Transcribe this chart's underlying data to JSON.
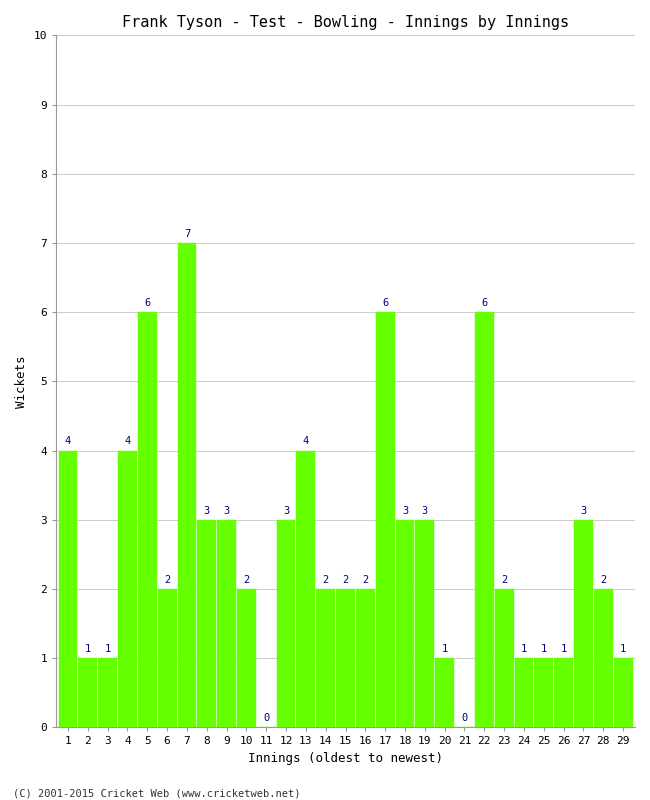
{
  "title": "Frank Tyson - Test - Bowling - Innings by Innings",
  "xlabel": "Innings (oldest to newest)",
  "ylabel": "Wickets",
  "bar_color": "#66ff00",
  "bar_edge_color": "#66ff00",
  "label_color": "#000080",
  "background_color": "#ffffff",
  "grid_color": "#cccccc",
  "ylim": [
    0,
    10
  ],
  "yticks": [
    0,
    1,
    2,
    3,
    4,
    5,
    6,
    7,
    8,
    9,
    10
  ],
  "innings": [
    1,
    2,
    3,
    4,
    5,
    6,
    7,
    8,
    9,
    10,
    11,
    12,
    13,
    14,
    15,
    16,
    17,
    18,
    19,
    20,
    21,
    22,
    23,
    24,
    25,
    26,
    27,
    28,
    29
  ],
  "wickets": [
    4,
    1,
    1,
    4,
    6,
    2,
    7,
    3,
    3,
    2,
    0,
    3,
    4,
    2,
    2,
    2,
    6,
    3,
    3,
    1,
    0,
    6,
    2,
    1,
    1,
    1,
    3,
    2,
    1
  ],
  "footer": "(C) 2001-2015 Cricket Web (www.cricketweb.net)",
  "title_fontsize": 11,
  "axis_label_fontsize": 9,
  "tick_fontsize": 8,
  "label_fontsize": 7.5,
  "footer_fontsize": 7.5,
  "bar_width": 0.95
}
